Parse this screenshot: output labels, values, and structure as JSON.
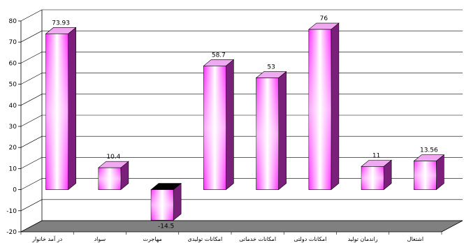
{
  "chart_data": {
    "type": "bar",
    "categories": [
      "در آمد خانوار",
      "سواد",
      "مهاجرت",
      "امکانات تولیدی",
      "امکانات خدماتی",
      "امکانات دولتی",
      "راندمان تولید",
      "اشتغال"
    ],
    "values": [
      73.93,
      10.4,
      -14.5,
      58.7,
      53,
      76,
      11,
      13.56
    ],
    "value_labels": [
      "73.93",
      "10.4",
      "-14.5",
      "58.7",
      "53",
      "76",
      "11",
      "13.56"
    ],
    "ylim": [
      -20,
      80
    ],
    "yticks": [
      -20,
      -10,
      0,
      10,
      20,
      30,
      40,
      50,
      60,
      70,
      80
    ],
    "grid": true,
    "style": "3d-column",
    "colors": {
      "bar_front_edge": "#ff33ff",
      "bar_front_center": "#ffffff",
      "bar_top": "#f0a8f0",
      "bar_side": "#7a1f7a",
      "negative_top": "#000000",
      "floor": "#808080",
      "gridline": "#000000"
    }
  }
}
